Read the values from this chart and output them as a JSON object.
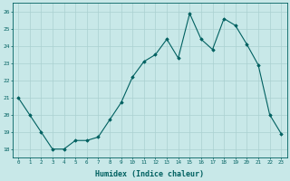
{
  "x": [
    0,
    1,
    2,
    3,
    4,
    5,
    6,
    7,
    8,
    9,
    10,
    11,
    12,
    13,
    14,
    15,
    16,
    17,
    18,
    19,
    20,
    21,
    22,
    23
  ],
  "y": [
    21.0,
    20.0,
    19.0,
    18.0,
    18.0,
    18.5,
    18.5,
    18.7,
    19.7,
    20.7,
    22.2,
    23.1,
    23.5,
    24.4,
    23.3,
    25.9,
    24.4,
    23.8,
    25.6,
    25.2,
    24.1,
    22.9,
    20.0,
    18.9
  ],
  "xlabel": "Humidex (Indice chaleur)",
  "ylim": [
    17.5,
    26.5
  ],
  "xlim": [
    -0.5,
    23.5
  ],
  "bg_color": "#c8e8e8",
  "grid_color": "#aad0d0",
  "line_color": "#006060",
  "marker_color": "#006060",
  "tick_color": "#006060",
  "label_color": "#006060",
  "xlabel_fontsize": 6,
  "ytick_labels": [
    "18",
    "19",
    "20",
    "21",
    "22",
    "23",
    "24",
    "25",
    "26"
  ],
  "ytick_vals": [
    18,
    19,
    20,
    21,
    22,
    23,
    24,
    25,
    26
  ]
}
